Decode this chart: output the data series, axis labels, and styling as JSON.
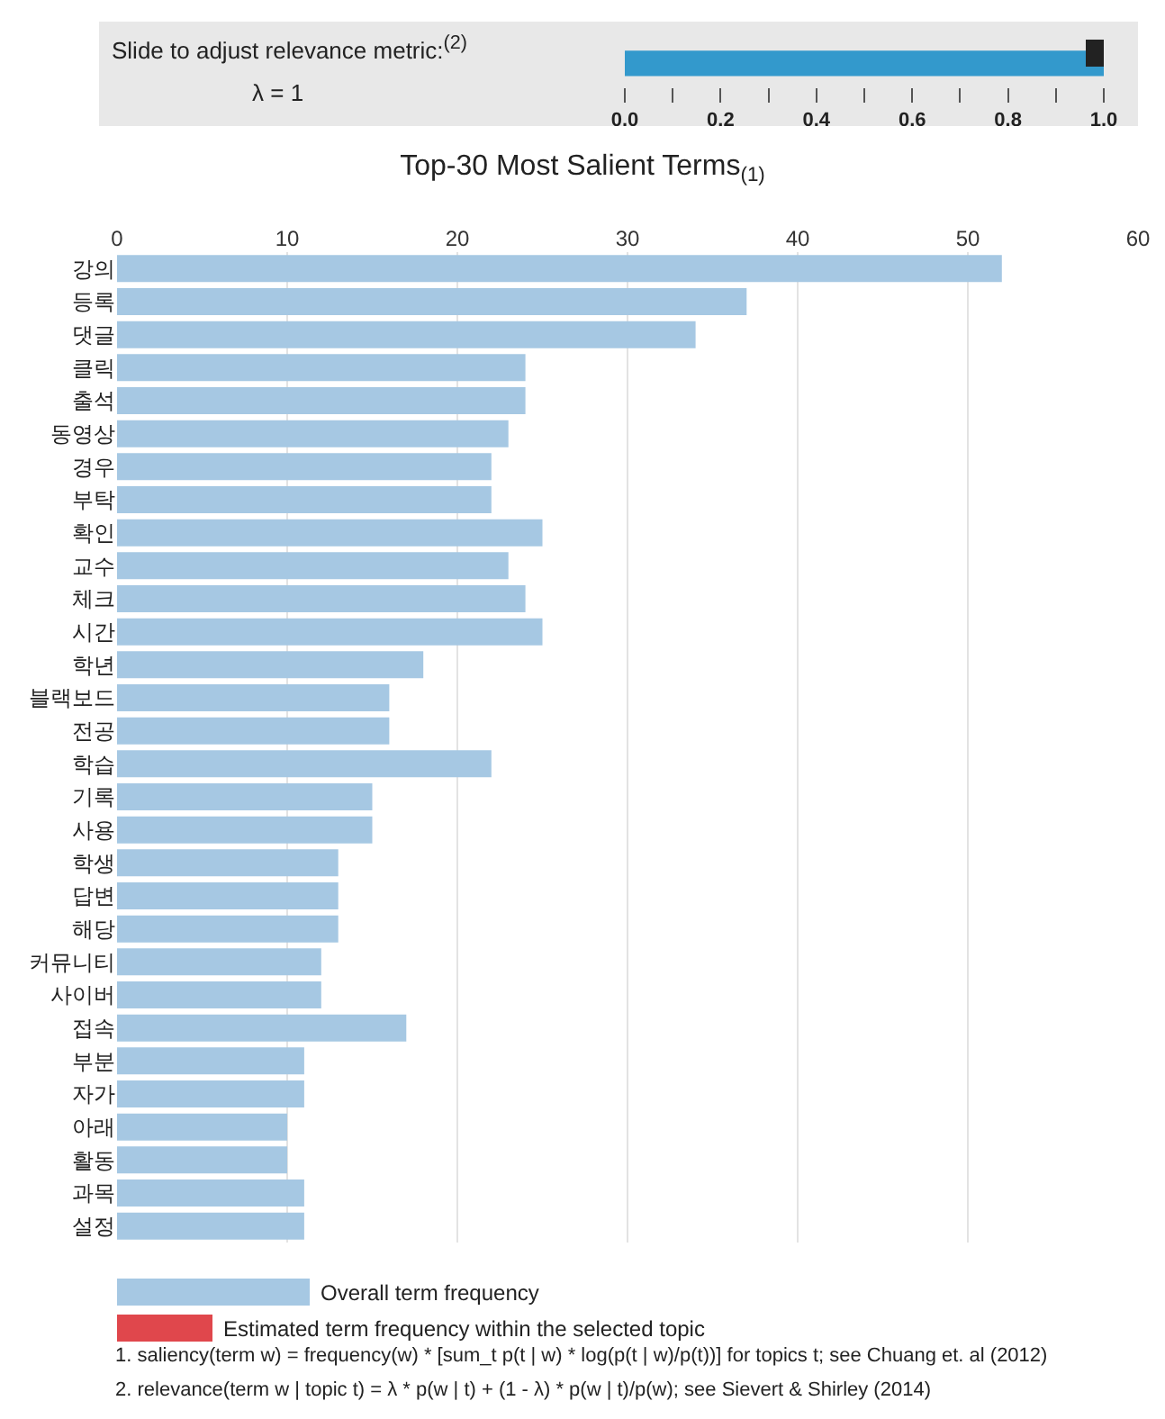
{
  "chart_data": [
    {
      "type": "bar",
      "orientation": "horizontal",
      "annotations": [
        "Slide to adjust relevance metric:$^{(2)}$",
        "λ = 1"
      ],
      "categories": [
        null
      ],
      "values": [
        1
      ],
      "color": "#3399cc",
      "xlim": [
        0,
        1
      ],
      "xticks": [
        {
          "value": 0,
          "label": "0.0"
        },
        {
          "value": 0.1,
          "label": null
        },
        {
          "value": 0.2,
          "label": "0.2"
        },
        {
          "value": 0.3,
          "label": null
        },
        {
          "value": 0.4,
          "label": "0.4"
        },
        {
          "value": 0.5,
          "label": null
        },
        {
          "value": 0.6,
          "label": "0.6"
        },
        {
          "value": 0.7,
          "label": null
        },
        {
          "value": 0.8,
          "label": "0.8"
        },
        {
          "value": 0.9,
          "label": null
        },
        {
          "value": 1,
          "label": "1.0"
        }
      ]
    },
    {
      "type": "bar",
      "orientation": "horizontal",
      "title": "Top-30 Most Salient Terms$_{(1)}$",
      "categories": [
        "강의",
        "등록",
        "댓글",
        "클릭",
        "출석",
        "동영상",
        "경우",
        "부탁",
        "확인",
        "교수",
        "체크",
        "시간",
        "학년",
        "블랙보드",
        "전공",
        "학습",
        "기록",
        "사용",
        "학생",
        "답변",
        "해당",
        "커뮤니티",
        "사이버",
        "접속",
        "부분",
        "자가",
        "아래",
        "활동",
        "과목",
        "설정"
      ],
      "series": [
        {
          "name": "Overall term frequency",
          "color": "#a6c8e3",
          "values": [
            52,
            37,
            34,
            24,
            24,
            23,
            22,
            22,
            25,
            23,
            24,
            25,
            18,
            16,
            16,
            22,
            15,
            15,
            13,
            13,
            13,
            12,
            12,
            17,
            11,
            11,
            10,
            10,
            11,
            11
          ]
        },
        {
          "name": "Estimated term frequency within the selected topic",
          "color": "#e0474c",
          "values": [
            null,
            null,
            null,
            null,
            null,
            null,
            null,
            null,
            null,
            null,
            null,
            null,
            null,
            null,
            null,
            null,
            null,
            null,
            null,
            null,
            null,
            null,
            null,
            null,
            null,
            null,
            null,
            null,
            null,
            null
          ]
        }
      ],
      "xlim": [
        0,
        60
      ],
      "xticks": [
        0,
        10,
        20,
        30,
        40,
        50,
        60
      ],
      "grid": "x",
      "legend": "bottom",
      "annotations": [
        "1. saliency(term w) = frequency(w) * [sum_t p(t | w) * log(p(t | w)/p(t))] for topics t; see Chuang et. al (2012)",
        "2. relevance(term w | topic t) = λ * p(w | t) + (1 - λ) * p(w | t)/p(w); see Sievert & Shirley (2014)"
      ]
    }
  ]
}
